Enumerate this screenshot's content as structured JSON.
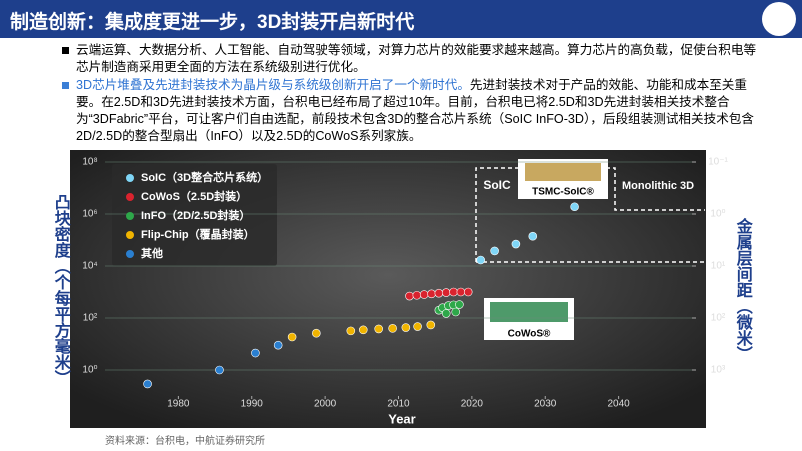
{
  "header": {
    "title": "制造创新：集成度更进一步，3D封装开启新时代"
  },
  "bullets": [
    {
      "text": "云端运算、大数据分析、人工智能、自动驾驶等领域，对算力芯片的效能要求越来越高。算力芯片的高负载，促使台积电等芯片制造商采用更全面的方法在系统级别进行优化。"
    },
    {
      "highlight": "3D芯片堆叠及先进封装技术为晶片级与系统级创新开启了一个新时代。",
      "text": "先进封装技术对于产品的效能、功能和成本至关重要。在2.5D和3D先进封装技术方面，台积电已经布局了超过10年。目前，台积电已将2.5D和3D先进封装相关技术整合为“3DFabric”平台，可让客户们自由选配，前段技术包含3D的整合芯片系统（SoIC InFO-3D），后段组装测试相关技术包含2D/2.5D的整合型扇出（InFO）以及2.5D的CoWoS系列家族。"
    }
  ],
  "chart_data": {
    "type": "scatter",
    "x_label": "Year",
    "y_label": "凸块密度（个每平方毫米）",
    "y2_label": "金属层间距（微米）",
    "annotations": [
      "SoIC",
      "Monolithic 3D",
      "TSMC-SoIC®",
      "CoWoS®"
    ],
    "xlim": [
      1970,
      2050
    ],
    "xticks": [
      1980,
      1990,
      2000,
      2010,
      2020,
      2030,
      2040
    ],
    "ylim": [
      0.1,
      100000000
    ],
    "log_y": true,
    "grid": true,
    "yticks": [
      {
        "value": 1,
        "label": "10⁰"
      },
      {
        "value": 100,
        "label": "10²"
      },
      {
        "value": 10000,
        "label": "10⁴"
      },
      {
        "value": 1000000,
        "label": "10⁶"
      },
      {
        "value": 100000000,
        "label": "10⁸"
      }
    ],
    "y2lim": [
      0.1,
      3162
    ],
    "y2_inverted": true,
    "y2ticks": [
      {
        "value": 0.1,
        "label": "10⁻¹"
      },
      {
        "value": 1,
        "label": "10⁰"
      },
      {
        "value": 10,
        "label": "10¹"
      },
      {
        "value": 100,
        "label": "10²"
      },
      {
        "value": 1000,
        "label": "10³"
      }
    ],
    "series": [
      {
        "name": "SoIC（3D整合芯片系统）",
        "color": "#7fd6f7",
        "x": [
          2021.2,
          2023.1,
          2026,
          2028.3,
          2034
        ],
        "values": [
          17000,
          38000,
          70000,
          140000,
          1900000
        ]
      },
      {
        "name": "CoWoS（2.5D封装）",
        "color": "#d9232e",
        "x": [
          2011.5,
          2012.5,
          2013.5,
          2014.5,
          2015.5,
          2016.5,
          2017.5,
          2018.5,
          2019.5
        ],
        "values": [
          700,
          750,
          800,
          850,
          900,
          950,
          1000,
          1000,
          1000
        ]
      },
      {
        "name": "InFO（2D/2.5D封装）",
        "color": "#2ea84a",
        "x": [
          2015.5,
          2016,
          2016.8,
          2017.5,
          2018.3,
          2016.5,
          2017.8
        ],
        "values": [
          200,
          250,
          300,
          320,
          330,
          150,
          170
        ]
      },
      {
        "name": "Flip-Chip（覆晶封装）",
        "color": "#f0b400",
        "x": [
          1995.5,
          1998.8,
          2003.5,
          2005.2,
          2007.3,
          2009.2,
          2011,
          2012.6,
          2014.4
        ],
        "values": [
          18.6,
          26,
          32,
          35,
          38,
          40,
          43,
          47,
          54
        ]
      },
      {
        "name": "其他",
        "color": "#2a7fd0",
        "x": [
          1975.8,
          1985.6,
          1990.5,
          1993.6
        ],
        "values": [
          0.29,
          1,
          4.5,
          9
        ]
      }
    ]
  },
  "source": "资料来源：台积电，中航证券研究所"
}
